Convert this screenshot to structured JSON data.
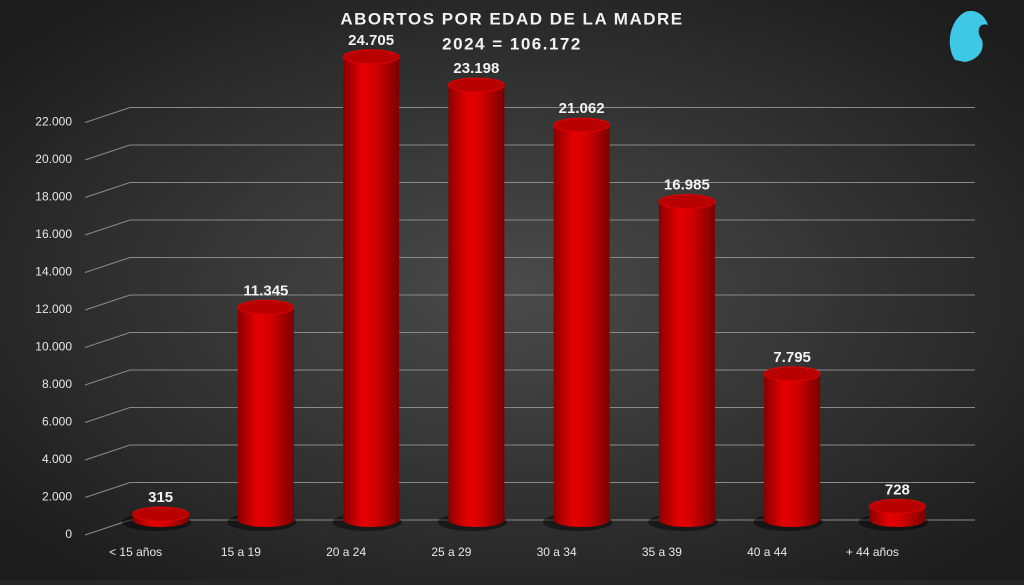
{
  "chart_data": {
    "type": "bar",
    "title": "ABORTOS POR EDAD DE LA MADRE",
    "subtitle": "2024 = 106.172",
    "categories": [
      "< 15 años",
      "15  a 19",
      "20 a 24",
      "25 a 29",
      "30 a 34",
      "35 a 39",
      "40 a 44",
      "+ 44 años"
    ],
    "values": [
      315,
      11345,
      24705,
      23198,
      21062,
      16985,
      7795,
      728
    ],
    "value_labels": [
      "315",
      "11.345",
      "24.705",
      "23.198",
      "21.062",
      "16.985",
      "7.795",
      "728"
    ],
    "color": "#d40000",
    "ylim": [
      0,
      24000
    ],
    "yticks": [
      0,
      {
        "value": 2000,
        "label": "2.000"
      },
      {
        "value": 4000,
        "label": "4.000"
      },
      {
        "value": 6000,
        "label": "6.000"
      },
      {
        "value": 8000,
        "label": "8.000"
      },
      {
        "value": 10000,
        "label": "10.000"
      },
      {
        "value": 12000,
        "label": "12.000"
      },
      {
        "value": 14000,
        "label": "14.000"
      },
      {
        "value": 16000,
        "label": "16.000"
      },
      {
        "value": 18000,
        "label": "18.000"
      },
      {
        "value": 20000,
        "label": "20.000"
      },
      {
        "value": 22000,
        "label": "22.000"
      }
    ],
    "grid": true
  }
}
